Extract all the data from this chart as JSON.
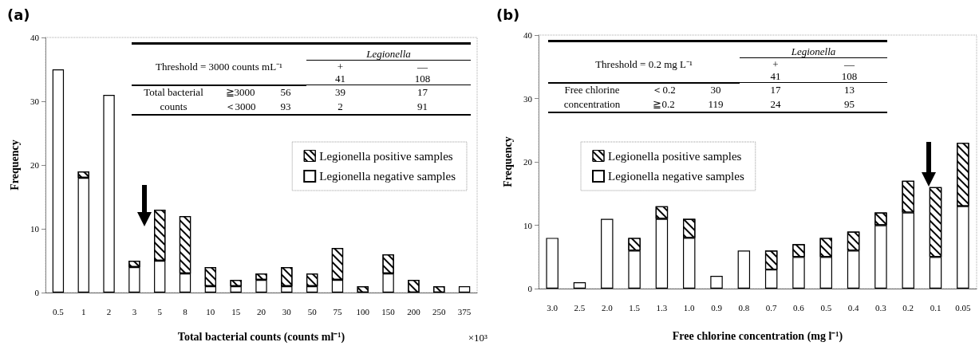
{
  "chart_data": [
    {
      "type": "bar",
      "title": "(a)",
      "xlabel": "Total bacterial counts (counts ml⁻¹)",
      "ylabel": "Frequency",
      "stacked": true,
      "legend": "right",
      "categories": [
        "0.5",
        "1",
        "2",
        "3",
        "5",
        "8",
        "10",
        "15",
        "20",
        "30",
        "50",
        "75",
        "100",
        "150",
        "200",
        "250",
        "375"
      ],
      "ylim": [
        0,
        40
      ],
      "yticks": [
        0,
        10,
        20,
        30,
        40
      ],
      "series": [
        {
          "name": "Legionella negative samples",
          "color": "#ffffff",
          "values": [
            35,
            18,
            31,
            4,
            5,
            3,
            1,
            1,
            2,
            1,
            1,
            2,
            0,
            3,
            0,
            0,
            1
          ]
        },
        {
          "name": "Legionella positive samples",
          "color": "#ffffff",
          "values": [
            0,
            1,
            0,
            1,
            8,
            9,
            3,
            1,
            1,
            3,
            2,
            5,
            1,
            3,
            2,
            1,
            0
          ]
        }
      ],
      "annotations": [
        "Legionella",
        "Threshold = 3000 counts mL⁻¹",
        "+",
        "—",
        "41",
        "108",
        "Total bacterial counts",
        "≧3000",
        "56",
        "39",
        "17",
        "＜3000",
        "93",
        "2",
        "91",
        "×10³"
      ]
    },
    {
      "type": "bar",
      "title": "(b)",
      "xlabel": "Free chlorine concentration (mg l⁻¹)",
      "ylabel": "Frequency",
      "stacked": true,
      "legend": "left",
      "categories": [
        "3.0",
        "2.5",
        "2.0",
        "1.5",
        "1.3",
        "1.0",
        "0.9",
        "0.8",
        "0.7",
        "0.6",
        "0.5",
        "0.4",
        "0.3",
        "0.2",
        "0.1",
        "0.05"
      ],
      "ylim": [
        0,
        40
      ],
      "yticks": [
        0,
        10,
        20,
        30,
        40
      ],
      "series": [
        {
          "name": "Legionella negative samples",
          "color": "#ffffff",
          "values": [
            8,
            1,
            11,
            6,
            11,
            8,
            2,
            6,
            3,
            5,
            5,
            6,
            10,
            12,
            5,
            13
          ]
        },
        {
          "name": "Legionella positive samples",
          "color": "#ffffff",
          "values": [
            0,
            0,
            0,
            2,
            2,
            3,
            0,
            0,
            3,
            2,
            3,
            3,
            2,
            5,
            11,
            10
          ]
        }
      ],
      "annotations": [
        "Legionella",
        "Threshold = 0.2 mg L⁻¹",
        "+",
        "—",
        "41",
        "108",
        "Free chlorine concentration",
        "＜0.2",
        "30",
        "17",
        "13",
        "≧0.2",
        "119",
        "24",
        "95"
      ]
    }
  ]
}
